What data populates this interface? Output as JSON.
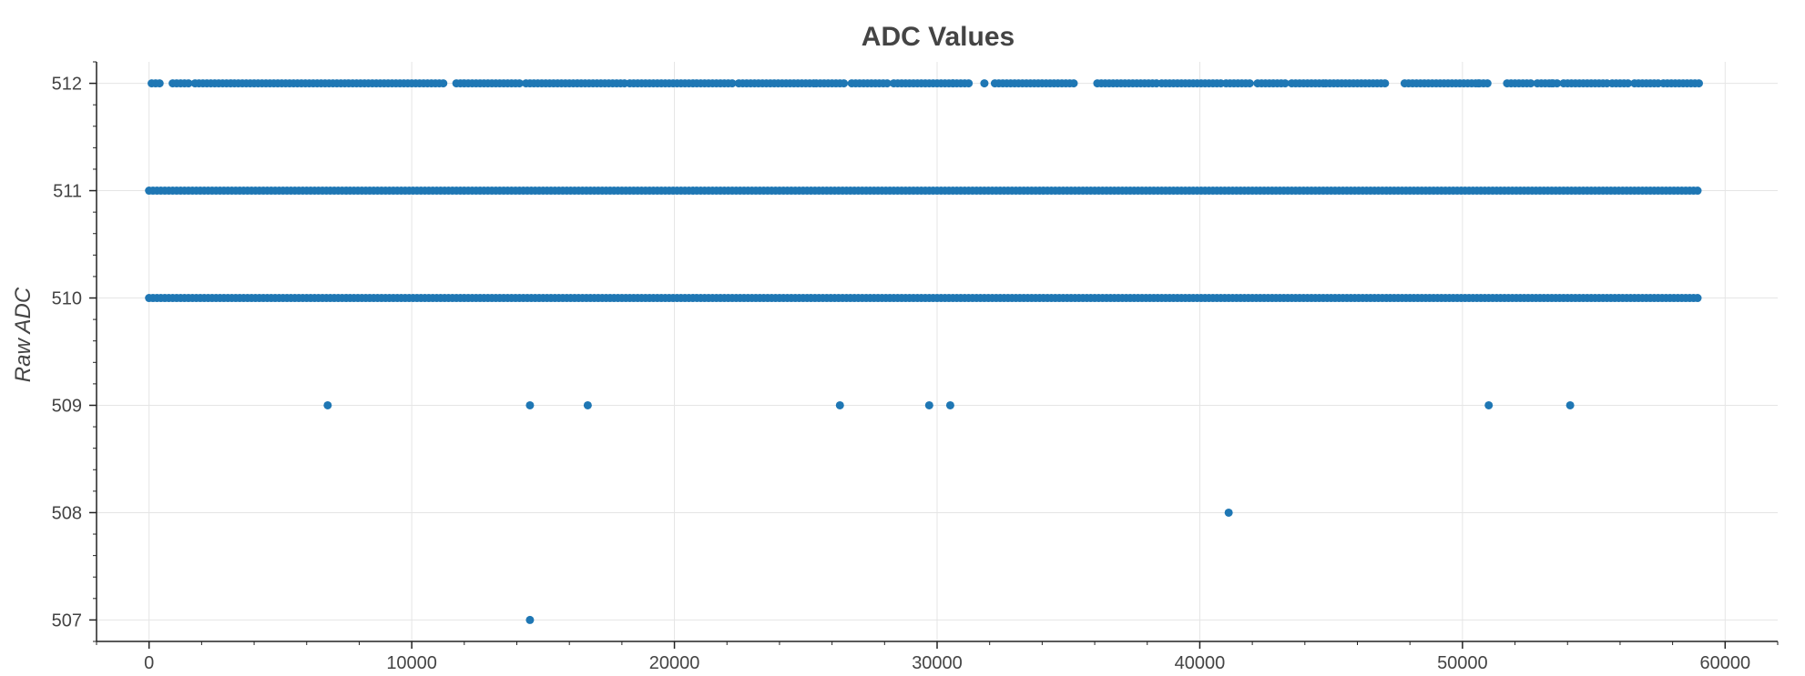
{
  "chart_data": {
    "type": "scatter",
    "title": "ADC Values",
    "xlabel": "",
    "ylabel": "Raw ADC",
    "xlim": [
      -2000,
      62000
    ],
    "ylim": [
      506.8,
      512.2
    ],
    "x_ticks": [
      0,
      10000,
      20000,
      30000,
      40000,
      50000,
      60000
    ],
    "x_tick_labels": [
      "0",
      "10000",
      "20000",
      "30000",
      "40000",
      "50000",
      "60000"
    ],
    "y_ticks": [
      507,
      508,
      509,
      510,
      511,
      512
    ],
    "y_tick_labels": [
      "507",
      "508",
      "509",
      "510",
      "511",
      "512"
    ],
    "grid": true,
    "legend": "none",
    "marker_color": "#1f77b4",
    "dense_bands": [
      {
        "y": 510,
        "x_start": 0,
        "x_end": 59000
      },
      {
        "y": 511,
        "x_start": 0,
        "x_end": 59000
      }
    ],
    "top_row": {
      "y": 512,
      "segments": [
        [
          100,
          500
        ],
        [
          900,
          1200
        ],
        [
          1350,
          1600
        ],
        [
          1750,
          11300
        ],
        [
          11700,
          14200
        ],
        [
          14350,
          17400
        ],
        [
          17500,
          18200
        ],
        [
          18300,
          20100
        ],
        [
          20250,
          22300
        ],
        [
          22450,
          25300
        ],
        [
          25400,
          26500
        ],
        [
          26750,
          28200
        ],
        [
          28350,
          29300
        ],
        [
          29400,
          31200
        ],
        [
          32200,
          35300
        ],
        [
          36100,
          38400
        ],
        [
          38550,
          40900
        ],
        [
          41000,
          42000
        ],
        [
          42200,
          43300
        ],
        [
          43500,
          44700
        ],
        [
          44800,
          47100
        ],
        [
          47800,
          48600
        ],
        [
          48700,
          49600
        ],
        [
          49750,
          51000
        ],
        [
          51700,
          52700
        ],
        [
          52850,
          53700
        ],
        [
          53850,
          55500
        ],
        [
          55700,
          56400
        ],
        [
          56550,
          57500
        ],
        [
          57650,
          59000
        ]
      ],
      "isolated_x": [
        30600,
        31800,
        50600,
        53400
      ]
    },
    "outliers": [
      {
        "x": 6800,
        "y": 509
      },
      {
        "x": 14500,
        "y": 509
      },
      {
        "x": 16700,
        "y": 509
      },
      {
        "x": 26300,
        "y": 509
      },
      {
        "x": 29700,
        "y": 509
      },
      {
        "x": 30500,
        "y": 509
      },
      {
        "x": 51000,
        "y": 509
      },
      {
        "x": 54100,
        "y": 509
      },
      {
        "x": 41100,
        "y": 508
      },
      {
        "x": 14500,
        "y": 507
      }
    ]
  }
}
